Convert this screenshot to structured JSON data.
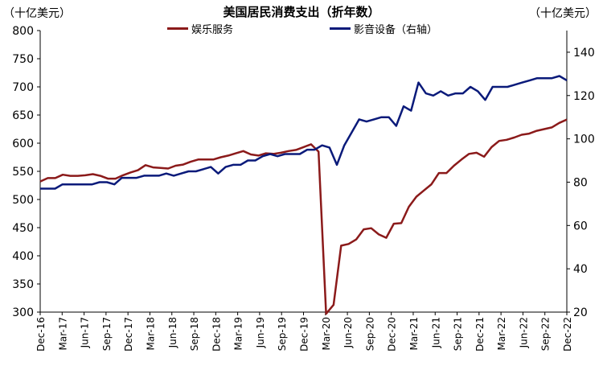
{
  "chart_data": {
    "type": "line",
    "title": "美国居民消费支出（折年数）",
    "left_unit": "（十亿美元）",
    "right_unit": "（十亿美元）",
    "x_labels": [
      "Dec-16",
      "Mar-17",
      "Jun-17",
      "Sep-17",
      "Dec-17",
      "Mar-18",
      "Jun-18",
      "Sep-18",
      "Dec-18",
      "Mar-19",
      "Jun-19",
      "Sep-19",
      "Dec-19",
      "Mar-20",
      "Jun-20",
      "Sep-20",
      "Dec-20",
      "Mar-21",
      "Jun-21",
      "Sep-21",
      "Dec-21",
      "Mar-22",
      "Jun-22",
      "Sep-22",
      "Dec-22"
    ],
    "y_left": {
      "min": 300,
      "max": 800,
      "ticks": [
        300,
        350,
        400,
        450,
        500,
        550,
        600,
        650,
        700,
        750,
        800
      ]
    },
    "y_right": {
      "min": 20,
      "max": 150,
      "ticks": [
        20,
        40,
        60,
        80,
        100,
        120,
        140
      ]
    },
    "legend_position": "top-center",
    "series": [
      {
        "name": "娱乐服务",
        "axis": "left",
        "color": "#8B1A1A",
        "values": [
          532,
          538,
          538,
          544,
          542,
          542,
          543,
          545,
          542,
          537,
          537,
          543,
          548,
          552,
          561,
          557,
          556,
          555,
          560,
          562,
          567,
          571,
          571,
          571,
          575,
          578,
          582,
          586,
          580,
          578,
          582,
          581,
          583,
          586,
          588,
          593,
          598,
          585,
          297,
          313,
          418,
          421,
          429,
          447,
          449,
          438,
          432,
          457,
          458,
          487,
          505,
          516,
          527,
          547,
          547,
          560,
          571,
          581,
          583,
          576,
          593,
          604,
          606,
          610,
          615,
          617,
          622,
          625,
          628,
          636,
          642
        ]
      },
      {
        "name": "影音设备（右轴）",
        "axis": "right",
        "color": "#0A1A7A",
        "values": [
          77,
          77,
          77,
          79,
          79,
          79,
          79,
          79,
          80,
          80,
          79,
          82,
          82,
          82,
          83,
          83,
          83,
          84,
          83,
          84,
          85,
          85,
          86,
          87,
          84,
          87,
          88,
          88,
          90,
          90,
          92,
          93,
          92,
          93,
          93,
          93,
          95,
          95,
          97,
          96,
          88,
          97,
          103,
          109,
          108,
          109,
          110,
          110,
          106,
          115,
          113,
          126,
          121,
          120,
          122,
          120,
          121,
          121,
          124,
          122,
          118,
          124,
          124,
          124,
          125,
          126,
          127,
          128,
          128,
          128,
          129,
          127
        ]
      }
    ]
  }
}
